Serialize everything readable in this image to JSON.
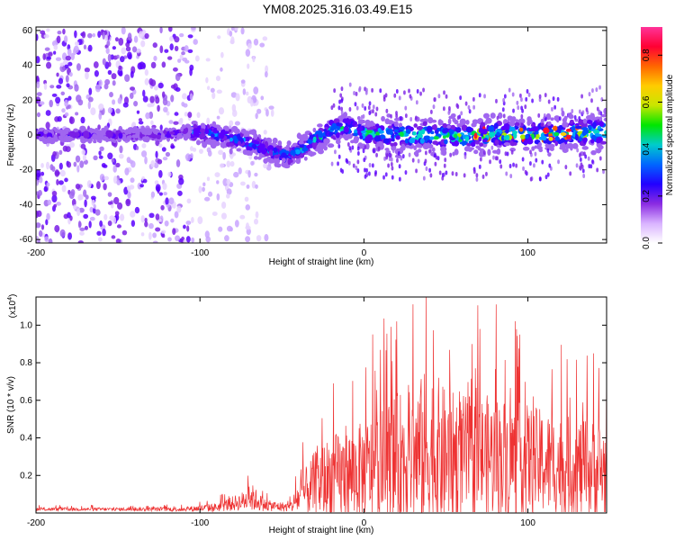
{
  "title": "YM08.2025.316.03.49.E15",
  "chart_data": [
    {
      "type": "heatmap",
      "title": "YM08.2025.316.03.49.E15",
      "xlabel": "Height of straight line (km)",
      "ylabel": "Frequency (Hz)",
      "xlim": [
        -200,
        148
      ],
      "ylim": [
        -62,
        62
      ],
      "xticks": [
        -200,
        -100,
        0,
        100
      ],
      "yticks": [
        -60,
        -40,
        -20,
        0,
        20,
        40,
        60
      ],
      "colorbar": {
        "label": "Normalized spectral amplitude",
        "range": [
          0,
          0.92
        ],
        "ticks": [
          0.0,
          0.2,
          0.4,
          0.6,
          0.8
        ],
        "tick_labels": [
          "0.0",
          "0.2",
          "0.4",
          "0.6",
          "0.8"
        ],
        "colors": [
          "#ffffff",
          "#d9b3ff",
          "#8a2be2",
          "#2200ff",
          "#0066ff",
          "#00cccc",
          "#00e600",
          "#c8e600",
          "#ffcc00",
          "#ff6600",
          "#ff0033",
          "#ff3399"
        ]
      },
      "ridge": {
        "x": [
          -200,
          -160,
          -120,
          -105,
          -90,
          -75,
          -65,
          -55,
          -45,
          -38,
          -30,
          -20,
          -10,
          0,
          20,
          40,
          60,
          80,
          100,
          120,
          148
        ],
        "freq": [
          0,
          0,
          0,
          2,
          0,
          -3,
          -6,
          -10,
          -12,
          -8,
          -3,
          3,
          5,
          1,
          0,
          0,
          -1,
          1,
          0,
          1,
          2
        ]
      }
    },
    {
      "type": "line",
      "xlabel": "Height of straight line (km)",
      "ylabel": "SNR (10 * v/v)",
      "scale_label": "(x10",
      "scale_exp": "4",
      "xlim": [
        -200,
        148
      ],
      "ylim": [
        0,
        1.15
      ],
      "xticks": [
        -200,
        -100,
        0,
        100
      ],
      "yticks": [
        0.2,
        0.4,
        0.6,
        0.8,
        1.0
      ],
      "ytick_labels": [
        "0.2",
        "0.4",
        "0.6",
        "0.8",
        "1.0"
      ],
      "color": "#ee3333",
      "envelope": {
        "x": [
          -200,
          -150,
          -110,
          -90,
          -75,
          -68,
          -60,
          -45,
          -40,
          -30,
          -20,
          -10,
          0,
          10,
          20,
          30,
          40,
          50,
          60,
          80,
          100,
          120,
          148
        ],
        "base": [
          0.02,
          0.02,
          0.02,
          0.03,
          0.06,
          0.08,
          0.04,
          0.03,
          0.08,
          0.15,
          0.18,
          0.2,
          0.22,
          0.25,
          0.28,
          0.3,
          0.32,
          0.3,
          0.3,
          0.3,
          0.28,
          0.25,
          0.22
        ],
        "amp": [
          0.015,
          0.015,
          0.02,
          0.04,
          0.08,
          0.12,
          0.05,
          0.04,
          0.15,
          0.3,
          0.4,
          0.4,
          0.45,
          0.5,
          0.6,
          0.6,
          0.8,
          0.6,
          0.55,
          0.55,
          0.5,
          0.45,
          0.45
        ]
      },
      "peaks": [
        {
          "x": 38,
          "y": 1.15
        },
        {
          "x": -70,
          "y": 0.14
        },
        {
          "x": 20,
          "y": 1.02
        },
        {
          "x": 66,
          "y": 0.9
        },
        {
          "x": 95,
          "y": 0.95
        },
        {
          "x": 140,
          "y": 0.85
        }
      ]
    }
  ]
}
